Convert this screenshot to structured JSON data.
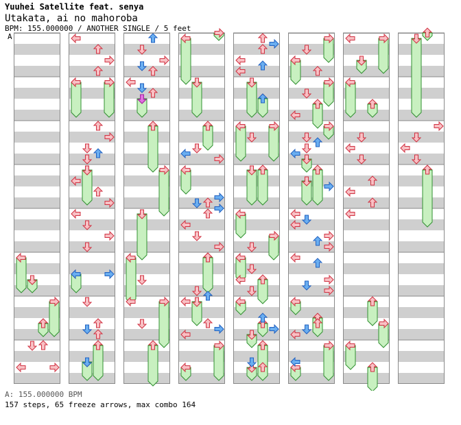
{
  "header": {
    "artist": "Yuuhei Satellite feat. senya",
    "title": "Utakata, ai no mahoroba",
    "meta": "BPM: 155.000000 / ANOTHER SINGLE / 5 feet"
  },
  "bpm_marker": "A",
  "footer": {
    "bpm_line": "A: 155.000000 BPM",
    "stats_line": "157 steps, 65 freeze arrows, max combo 164"
  },
  "chart": {
    "steps": 157,
    "freeze_arrows": 65,
    "max_combo": 164,
    "bpm": 155,
    "difficulty": "ANOTHER",
    "mode": "SINGLE",
    "level_feet": 5,
    "columns": 8,
    "measures_per_column": 8,
    "colors": {
      "quarter_arrow": "#f8a0a8",
      "eighth_arrow": "#6aaef0",
      "sixteenth_arrow": "#e060e0",
      "freeze_body": "#c8f0c0",
      "freeze_border": "#309030",
      "stripe": "#cfcfcf"
    }
  }
}
